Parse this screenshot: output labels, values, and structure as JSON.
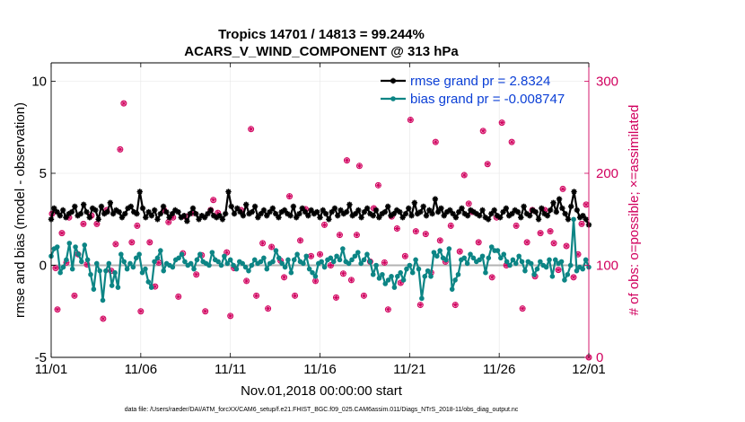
{
  "chart_data": {
    "type": "line",
    "title_line1": "Tropics 14701 / 14813 = 99.244%",
    "title_line2": "ACARS_V_WIND_COMPONENT @ 313 hPa",
    "xlabel": "Nov.01,2018 00:00:00 start",
    "ylabel_left": "rmse and bias (model - observation)",
    "ylabel_right": "# of obs: o=possible; ×=assimilated",
    "x_ticks": [
      "11/01",
      "11/06",
      "11/11",
      "11/16",
      "11/21",
      "11/26",
      "12/01"
    ],
    "y_ticks_left": [
      "-5",
      "0",
      "5",
      "10"
    ],
    "y_ticks_right": [
      "0",
      "100",
      "200",
      "300"
    ],
    "ylim_left": [
      -5,
      11
    ],
    "ylim_right": [
      0,
      320
    ],
    "xlim_days": [
      0,
      30
    ],
    "grid": true,
    "legend_placement": "top-right",
    "colors": {
      "rmse": "#000000",
      "bias": "#0c8585",
      "counts": "#d1005e",
      "zero_line": "#b3b3b3",
      "legend_text": "#0b3fd6"
    },
    "series": [
      {
        "name": "rmse grand pr = 2.8324",
        "values": [
          2.5,
          3.1,
          2.9,
          2.7,
          3.0,
          2.6,
          2.8,
          2.9,
          3.2,
          2.7,
          2.8,
          3.3,
          2.9,
          2.6,
          3.1,
          3.0,
          2.5,
          3.2,
          2.8,
          2.9,
          3.4,
          2.8,
          3.0,
          2.9,
          2.6,
          2.8,
          3.1,
          3.2,
          2.9,
          2.8,
          4.0,
          3.1,
          2.6,
          2.9,
          2.7,
          3.0,
          2.5,
          2.8,
          3.2,
          2.9,
          2.6,
          2.8,
          3.0,
          2.9,
          2.6,
          2.7,
          2.4,
          2.8,
          3.1,
          2.8,
          2.5,
          2.7,
          2.6,
          2.8,
          3.0,
          2.7,
          2.6,
          2.7,
          2.5,
          2.8,
          4.0,
          3.2,
          2.8,
          3.1,
          2.9,
          2.7,
          3.3,
          2.8,
          2.9,
          3.2,
          2.6,
          2.8,
          3.0,
          2.7,
          2.9,
          3.1,
          2.8,
          2.6,
          2.9,
          3.0,
          2.8,
          2.7,
          3.2,
          2.6,
          2.8,
          3.1,
          2.9,
          2.7,
          3.0,
          2.8,
          2.9,
          2.6,
          3.0,
          2.8,
          2.5,
          2.9,
          3.1,
          2.7,
          3.0,
          2.8,
          2.9,
          3.3,
          2.7,
          2.8,
          3.0,
          2.6,
          2.9,
          3.1,
          2.8,
          2.7,
          3.0,
          2.6,
          2.8,
          2.9,
          3.2,
          2.7,
          2.8,
          3.0,
          2.9,
          2.6,
          2.8,
          3.1,
          2.7,
          3.4,
          2.8,
          2.9,
          3.2,
          2.7,
          3.0,
          2.8,
          3.6,
          2.9,
          3.1,
          2.7,
          2.9,
          3.0,
          2.8,
          2.6,
          2.9,
          3.1,
          2.8,
          2.7,
          3.0,
          2.9,
          2.8,
          2.7,
          3.0,
          2.6,
          2.5,
          2.8,
          3.0,
          2.7,
          2.6,
          2.9,
          3.1,
          2.7,
          2.8,
          3.0,
          2.9,
          2.6,
          3.2,
          2.8,
          2.7,
          3.0,
          2.9,
          2.5,
          3.1,
          2.8,
          2.7,
          3.0,
          3.4,
          2.9,
          3.6,
          3.1,
          2.8,
          2.5,
          3.2,
          4.0,
          3.0,
          2.6,
          2.7,
          2.5,
          2.2
        ]
      },
      {
        "name": "bias grand pr = -0.008747",
        "values": [
          0.5,
          0.9,
          1.0,
          -0.4,
          -0.1,
          0.3,
          1.2,
          -0.2,
          1.0,
          0.6,
          0.2,
          1.1,
          0.3,
          -0.5,
          -1.3,
          0.1,
          -0.3,
          -1.9,
          -0.3,
          0.1,
          -1.1,
          -0.4,
          -1.2,
          0.6,
          0.2,
          -0.2,
          0.1,
          -0.1,
          0.4,
          0.6,
          -0.4,
          -0.2,
          -0.9,
          -1.2,
          0.2,
          0.4,
          0.8,
          -0.3,
          0.1,
          0.0,
          -0.1,
          0.3,
          0.4,
          0.6,
          0.2,
          0.0,
          0.1,
          -0.2,
          0.3,
          0.6,
          0.2,
          0.1,
          0.0,
          0.7,
          0.3,
          0.2,
          0.0,
          0.5,
          0.1,
          0.3,
          0.0,
          -0.2,
          0.2,
          0.1,
          -0.1,
          -0.3,
          0.0,
          0.3,
          0.1,
          0.2,
          0.4,
          -0.2,
          0.1,
          0.2,
          0.8,
          0.4,
          0.1,
          -0.1,
          0.3,
          -0.4,
          0.3,
          0.6,
          0.2,
          0.1,
          0.5,
          -0.2,
          -0.4,
          -0.6,
          0.1,
          0.2,
          -0.1,
          0.3,
          0.4,
          0.2,
          0.5,
          0.3,
          0.9,
          0.2,
          0.1,
          0.3,
          0.5,
          0.7,
          0.1,
          0.3,
          0.6,
          0.2,
          -0.5,
          0.0,
          -0.7,
          -0.5,
          -1.0,
          -0.8,
          -0.6,
          -1.2,
          -0.6,
          -0.4,
          -0.8,
          -0.2,
          0.0,
          -0.4,
          0.3,
          -0.2,
          -1.8,
          -0.6,
          -0.3,
          -0.6,
          0.7,
          0.5,
          0.8,
          0.4,
          0.3,
          0.9,
          -1.3,
          -0.8,
          -0.5,
          0.3,
          0.4,
          0.1,
          0.6,
          0.4,
          0.2,
          0.3,
          0.5,
          -0.4,
          0.4,
          1.0,
          0.8,
          0.8,
          0.4,
          0.6,
          0.2,
          0.0,
          0.3,
          0.1,
          0.5,
          0.2,
          -0.3,
          0.2,
          0.1,
          -0.5,
          -0.2,
          0.2,
          0.0,
          -0.1,
          0.3,
          -0.6,
          0.3,
          0.1,
          0.2,
          -0.8,
          -0.5,
          0.0,
          2.5,
          -0.3,
          -0.1,
          -0.2,
          0.3,
          -0.1
        ]
      }
    ],
    "legend": [
      "rmse grand pr = 2.8324",
      "bias grand pr = -0.008747"
    ],
    "counts_possible": [
      {
        "x": 0.05,
        "y": 156
      },
      {
        "x": 0.25,
        "y": 97
      },
      {
        "x": 0.35,
        "y": 52
      },
      {
        "x": 0.6,
        "y": 135
      },
      {
        "x": 0.85,
        "y": 103
      },
      {
        "x": 1.0,
        "y": 152
      },
      {
        "x": 1.3,
        "y": 67
      },
      {
        "x": 1.5,
        "y": 112
      },
      {
        "x": 1.8,
        "y": 145
      },
      {
        "x": 2.0,
        "y": 101
      },
      {
        "x": 2.25,
        "y": 154
      },
      {
        "x": 2.55,
        "y": 145
      },
      {
        "x": 2.9,
        "y": 42
      },
      {
        "x": 3.1,
        "y": 160
      },
      {
        "x": 3.35,
        "y": 94
      },
      {
        "x": 3.6,
        "y": 123
      },
      {
        "x": 3.85,
        "y": 226
      },
      {
        "x": 4.05,
        "y": 276
      },
      {
        "x": 4.5,
        "y": 125
      },
      {
        "x": 4.8,
        "y": 143
      },
      {
        "x": 5.0,
        "y": 50
      },
      {
        "x": 5.5,
        "y": 125
      },
      {
        "x": 5.8,
        "y": 77
      },
      {
        "x": 6.0,
        "y": 103
      },
      {
        "x": 6.3,
        "y": 160
      },
      {
        "x": 6.55,
        "y": 147
      },
      {
        "x": 6.8,
        "y": 152
      },
      {
        "x": 7.1,
        "y": 66
      },
      {
        "x": 7.35,
        "y": 113
      },
      {
        "x": 7.5,
        "y": 153
      },
      {
        "x": 7.9,
        "y": 157
      },
      {
        "x": 8.1,
        "y": 90
      },
      {
        "x": 8.4,
        "y": 111
      },
      {
        "x": 8.6,
        "y": 50
      },
      {
        "x": 8.9,
        "y": 160
      },
      {
        "x": 9.05,
        "y": 171
      },
      {
        "x": 9.3,
        "y": 157
      },
      {
        "x": 9.8,
        "y": 114
      },
      {
        "x": 10.0,
        "y": 45
      },
      {
        "x": 10.2,
        "y": 97
      },
      {
        "x": 10.6,
        "y": 160
      },
      {
        "x": 10.9,
        "y": 83
      },
      {
        "x": 11.15,
        "y": 248
      },
      {
        "x": 11.45,
        "y": 67
      },
      {
        "x": 11.8,
        "y": 124
      },
      {
        "x": 12.1,
        "y": 53
      },
      {
        "x": 12.3,
        "y": 120
      },
      {
        "x": 12.8,
        "y": 105
      },
      {
        "x": 13.0,
        "y": 87
      },
      {
        "x": 13.3,
        "y": 175
      },
      {
        "x": 13.6,
        "y": 67
      },
      {
        "x": 13.9,
        "y": 127
      },
      {
        "x": 14.2,
        "y": 161
      },
      {
        "x": 14.5,
        "y": 110
      },
      {
        "x": 14.75,
        "y": 83
      },
      {
        "x": 15.0,
        "y": 112
      },
      {
        "x": 15.25,
        "y": 144
      },
      {
        "x": 15.6,
        "y": 100
      },
      {
        "x": 15.9,
        "y": 65
      },
      {
        "x": 16.1,
        "y": 133
      },
      {
        "x": 16.3,
        "y": 91
      },
      {
        "x": 16.5,
        "y": 214
      },
      {
        "x": 16.75,
        "y": 84
      },
      {
        "x": 17.05,
        "y": 133
      },
      {
        "x": 17.2,
        "y": 208
      },
      {
        "x": 17.45,
        "y": 67
      },
      {
        "x": 17.8,
        "y": 104
      },
      {
        "x": 18.0,
        "y": 162
      },
      {
        "x": 18.25,
        "y": 187
      },
      {
        "x": 18.6,
        "y": 103
      },
      {
        "x": 18.8,
        "y": 52
      },
      {
        "x": 19.0,
        "y": 153
      },
      {
        "x": 19.3,
        "y": 140
      },
      {
        "x": 19.5,
        "y": 81
      },
      {
        "x": 19.75,
        "y": 110
      },
      {
        "x": 20.05,
        "y": 258
      },
      {
        "x": 20.35,
        "y": 137
      },
      {
        "x": 20.6,
        "y": 57
      },
      {
        "x": 20.9,
        "y": 134
      },
      {
        "x": 21.2,
        "y": 92
      },
      {
        "x": 21.45,
        "y": 234
      },
      {
        "x": 21.7,
        "y": 127
      },
      {
        "x": 22.0,
        "y": 104
      },
      {
        "x": 22.3,
        "y": 143
      },
      {
        "x": 22.55,
        "y": 57
      },
      {
        "x": 22.8,
        "y": 115
      },
      {
        "x": 23.05,
        "y": 198
      },
      {
        "x": 23.3,
        "y": 167
      },
      {
        "x": 23.5,
        "y": 158
      },
      {
        "x": 23.85,
        "y": 125
      },
      {
        "x": 24.1,
        "y": 246
      },
      {
        "x": 24.35,
        "y": 210
      },
      {
        "x": 24.6,
        "y": 87
      },
      {
        "x": 24.85,
        "y": 152
      },
      {
        "x": 25.15,
        "y": 255
      },
      {
        "x": 25.4,
        "y": 100
      },
      {
        "x": 25.7,
        "y": 234
      },
      {
        "x": 25.95,
        "y": 143
      },
      {
        "x": 26.3,
        "y": 53
      },
      {
        "x": 26.55,
        "y": 125
      },
      {
        "x": 26.85,
        "y": 160
      },
      {
        "x": 27.0,
        "y": 88
      },
      {
        "x": 27.3,
        "y": 135
      },
      {
        "x": 27.55,
        "y": 160
      },
      {
        "x": 27.85,
        "y": 137
      },
      {
        "x": 28.05,
        "y": 124
      },
      {
        "x": 28.3,
        "y": 95
      },
      {
        "x": 28.55,
        "y": 183
      },
      {
        "x": 28.75,
        "y": 121
      },
      {
        "x": 29.15,
        "y": 87
      },
      {
        "x": 29.4,
        "y": 112
      },
      {
        "x": 29.6,
        "y": 145
      },
      {
        "x": 29.85,
        "y": 166
      },
      {
        "x": 30.0,
        "y": 0
      }
    ]
  },
  "footer": {
    "data_file": "data file: /Users/raeder/DAI/ATM_forcXX/CAM6_setup/f.e21.FHIST_BGC.f09_025.CAM6assim.011/Diags_NTrS_2018-11/obs_diag_output.nc"
  }
}
